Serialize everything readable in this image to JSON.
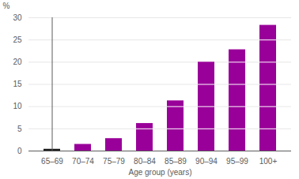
{
  "chart_data": {
    "type": "bar",
    "categories": [
      "65–69",
      "70–74",
      "75–79",
      "80–84",
      "85–89",
      "90–94",
      "95–99",
      "100+"
    ],
    "values": [
      0.4,
      1.5,
      2.8,
      6.2,
      11.3,
      20.0,
      22.8,
      28.3
    ],
    "colors": [
      "#1a1a1a",
      "#990099",
      "#990099",
      "#990099",
      "#990099",
      "#990099",
      "#990099",
      "#990099"
    ],
    "xlabel": "Age group (years)",
    "ylabel": "%",
    "ylim": [
      0,
      30
    ],
    "yticks": [
      0,
      5,
      10,
      15,
      20,
      25,
      30
    ],
    "grid": true
  }
}
